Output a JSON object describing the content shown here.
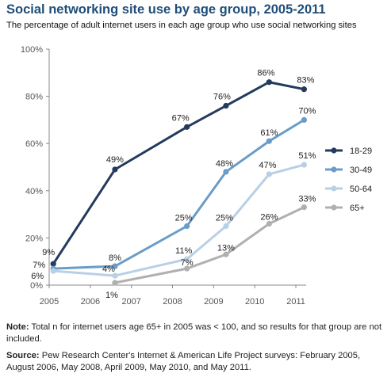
{
  "title": "Social networking site use by age group, 2005-2011",
  "subtitle": "The percentage of adult internet users in each age group who use social networking sites",
  "note": {
    "lead": "Note:",
    "text": " Total n for internet users age 65+ in 2005 was < 100, and so results for that group are not included."
  },
  "source": {
    "lead": "Source:",
    "text": " Pew Research Center's Internet & American Life Project surveys: February 2005, August 2006, May 2008, April 2009, May 2010, and May 2011."
  },
  "chart_data": {
    "type": "line",
    "title": "Social networking site use by age group, 2005-2011",
    "xlabel": "",
    "ylabel": "",
    "x_ticks": [
      "2005",
      "2006",
      "2007",
      "2008",
      "2009",
      "2010",
      "2011"
    ],
    "xlim": [
      2005,
      2011.25
    ],
    "y_ticks": [
      "0%",
      "20%",
      "40%",
      "60%",
      "80%",
      "100%"
    ],
    "ylim": [
      0,
      100
    ],
    "grid": false,
    "legend_position": "right",
    "series": [
      {
        "name": "18-29",
        "color": "#243a5e",
        "x": [
          2005.1,
          2006.6,
          2008.35,
          2009.3,
          2010.35,
          2011.2
        ],
        "values": [
          9,
          49,
          67,
          76,
          86,
          83
        ],
        "labels": [
          "9%",
          "49%",
          "67%",
          "76%",
          "86%",
          "83%"
        ]
      },
      {
        "name": "30-49",
        "color": "#6a9cc8",
        "x": [
          2005.1,
          2006.6,
          2008.35,
          2009.3,
          2010.35,
          2011.2
        ],
        "values": [
          7,
          8,
          25,
          48,
          61,
          70
        ],
        "labels": [
          "7%",
          "8%",
          "25%",
          "48%",
          "61%",
          "70%"
        ]
      },
      {
        "name": "50-64",
        "color": "#b9cfe6",
        "x": [
          2005.1,
          2006.6,
          2008.35,
          2009.3,
          2010.35,
          2011.2
        ],
        "values": [
          6,
          4,
          11,
          25,
          47,
          51
        ],
        "labels": [
          "6%",
          "4%",
          "11%",
          "25%",
          "47%",
          "51%"
        ]
      },
      {
        "name": "65+",
        "color": "#b0b0b0",
        "x": [
          2006.6,
          2008.35,
          2009.3,
          2010.35,
          2011.2
        ],
        "values": [
          1,
          7,
          13,
          26,
          33
        ],
        "labels": [
          "1%",
          "7%",
          "13%",
          "26%",
          "33%"
        ]
      }
    ]
  }
}
